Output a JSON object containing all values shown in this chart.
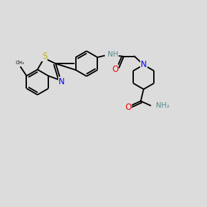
{
  "bg": "#dcdcdc",
  "bond_color": "#000000",
  "bond_lw": 1.4,
  "atom_colors": {
    "S": "#b8b800",
    "N": "#0000ee",
    "O": "#ee0000",
    "NH": "#558888",
    "NH2": "#558888"
  },
  "figsize": [
    3.0,
    3.0
  ],
  "dpi": 100
}
